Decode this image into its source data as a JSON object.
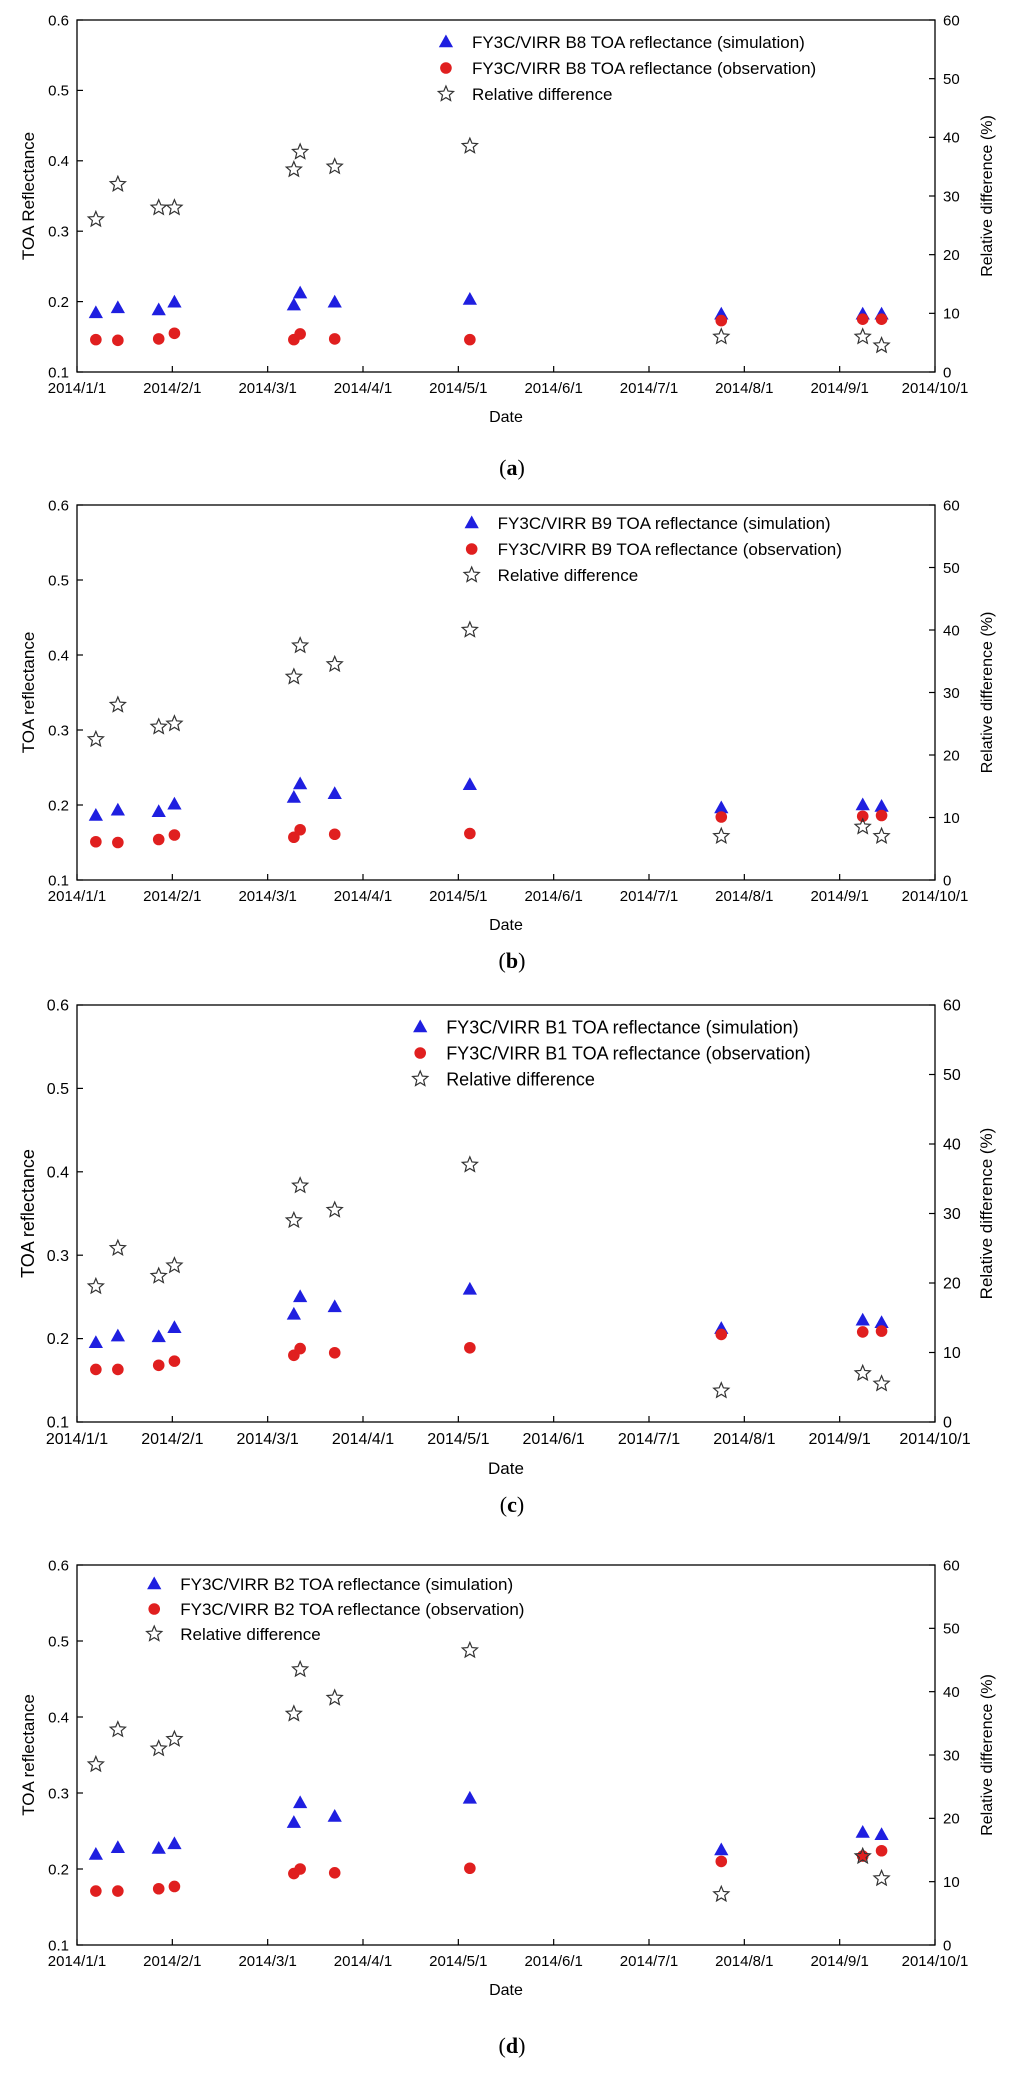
{
  "figure": {
    "panels": [
      "a",
      "b",
      "c",
      "d"
    ]
  },
  "chart_data": [
    {
      "type": "scatter",
      "panel_label": "a",
      "xlabel": "Date",
      "ylabel": "TOA Reflectance",
      "y2label": "Relative difference (%)",
      "ylim": [
        0.1,
        0.6
      ],
      "y2lim": [
        0,
        60
      ],
      "yticks": [
        "0.1",
        "0.2",
        "0.3",
        "0.4",
        "0.5",
        "0.6"
      ],
      "y2ticks": [
        "0",
        "10",
        "20",
        "30",
        "40",
        "50",
        "60"
      ],
      "xticks": [
        "2014/1/1",
        "2014/2/1",
        "2014/3/1",
        "2014/4/1",
        "2014/5/1",
        "2014/6/1",
        "2014/7/1",
        "2014/8/1",
        "2014/9/1",
        "2014/10/1"
      ],
      "xlim_days": [
        0,
        273
      ],
      "legend_position": "top-center",
      "series": [
        {
          "name": "FY3C/VIRR B8 TOA reflectance (simulation)",
          "marker": "triangle",
          "color": "#1f1fe0",
          "axis": "left",
          "x": [
            6,
            13,
            26,
            31,
            69,
            71,
            82,
            125,
            205,
            250,
            256
          ],
          "y": [
            0.184,
            0.191,
            0.188,
            0.199,
            0.195,
            0.212,
            0.199,
            0.203,
            0.182,
            0.182,
            0.182
          ]
        },
        {
          "name": "FY3C/VIRR B8 TOA reflectance (observation)",
          "marker": "circle",
          "color": "#e01f1f",
          "axis": "left",
          "x": [
            6,
            13,
            26,
            31,
            69,
            71,
            82,
            125,
            205,
            250,
            256
          ],
          "y": [
            0.146,
            0.145,
            0.147,
            0.155,
            0.146,
            0.154,
            0.147,
            0.146,
            0.173,
            0.175,
            0.175
          ]
        },
        {
          "name": "Relative difference",
          "marker": "star",
          "color": "#333333",
          "axis": "right",
          "x": [
            6,
            13,
            26,
            31,
            69,
            71,
            82,
            125,
            205,
            250,
            256
          ],
          "y": [
            26,
            32,
            28,
            28,
            34.5,
            37.5,
            35,
            38.5,
            6,
            6,
            4.5
          ]
        }
      ]
    },
    {
      "type": "scatter",
      "panel_label": "b",
      "xlabel": "Date",
      "ylabel": "TOA reflectance",
      "y2label": "Relative difference (%)",
      "ylim": [
        0.1,
        0.6
      ],
      "y2lim": [
        0,
        60
      ],
      "yticks": [
        "0.1",
        "0.2",
        "0.3",
        "0.4",
        "0.5",
        "0.6"
      ],
      "y2ticks": [
        "0",
        "10",
        "20",
        "30",
        "40",
        "50",
        "60"
      ],
      "xticks": [
        "2014/1/1",
        "2014/2/1",
        "2014/3/1",
        "2014/4/1",
        "2014/5/1",
        "2014/6/1",
        "2014/7/1",
        "2014/8/1",
        "2014/9/1",
        "2014/10/1"
      ],
      "xlim_days": [
        0,
        273
      ],
      "legend_position": "top-center",
      "series": [
        {
          "name": "FY3C/VIRR B9 TOA reflectance (simulation)",
          "marker": "triangle",
          "color": "#1f1fe0",
          "axis": "left",
          "x": [
            6,
            13,
            26,
            31,
            69,
            71,
            82,
            125,
            205,
            250,
            256
          ],
          "y": [
            0.186,
            0.193,
            0.191,
            0.201,
            0.21,
            0.228,
            0.215,
            0.227,
            0.196,
            0.2,
            0.198
          ]
        },
        {
          "name": "FY3C/VIRR B9 TOA reflectance (observation)",
          "marker": "circle",
          "color": "#e01f1f",
          "axis": "left",
          "x": [
            6,
            13,
            26,
            31,
            69,
            71,
            82,
            125,
            205,
            250,
            256
          ],
          "y": [
            0.151,
            0.15,
            0.154,
            0.16,
            0.157,
            0.167,
            0.161,
            0.162,
            0.184,
            0.185,
            0.186
          ]
        },
        {
          "name": "Relative difference",
          "marker": "star",
          "color": "#333333",
          "axis": "right",
          "x": [
            6,
            13,
            26,
            31,
            69,
            71,
            82,
            125,
            205,
            250,
            256
          ],
          "y": [
            22.5,
            28,
            24.5,
            25,
            32.5,
            37.5,
            34.5,
            40,
            7,
            8.5,
            7
          ]
        }
      ]
    },
    {
      "type": "scatter",
      "panel_label": "c",
      "xlabel": "Date",
      "ylabel": "TOA reflectance",
      "y2label": "Relative difference (%)",
      "ylim": [
        0.1,
        0.6
      ],
      "y2lim": [
        0,
        60
      ],
      "yticks": [
        "0.1",
        "0.2",
        "0.3",
        "0.4",
        "0.5",
        "0.6"
      ],
      "y2ticks": [
        "0",
        "10",
        "20",
        "30",
        "40",
        "50",
        "60"
      ],
      "xticks": [
        "2014/1/1",
        "2014/2/1",
        "2014/3/1",
        "2014/4/1",
        "2014/5/1",
        "2014/6/1",
        "2014/7/1",
        "2014/8/1",
        "2014/9/1",
        "2014/10/1"
      ],
      "xlim_days": [
        0,
        273
      ],
      "legend_position": "top-center",
      "series": [
        {
          "name": "FY3C/VIRR B1 TOA reflectance (simulation)",
          "marker": "triangle",
          "color": "#1f1fe0",
          "axis": "left",
          "x": [
            6,
            13,
            26,
            31,
            69,
            71,
            82,
            125,
            205,
            250,
            256
          ],
          "y": [
            0.195,
            0.203,
            0.202,
            0.213,
            0.229,
            0.25,
            0.238,
            0.259,
            0.212,
            0.222,
            0.219
          ]
        },
        {
          "name": "FY3C/VIRR B1 TOA reflectance (observation)",
          "marker": "circle",
          "color": "#e01f1f",
          "axis": "left",
          "x": [
            6,
            13,
            26,
            31,
            69,
            71,
            82,
            125,
            205,
            250,
            256
          ],
          "y": [
            0.163,
            0.163,
            0.168,
            0.173,
            0.18,
            0.188,
            0.183,
            0.189,
            0.205,
            0.208,
            0.209
          ]
        },
        {
          "name": "Relative difference",
          "marker": "star",
          "color": "#333333",
          "axis": "right",
          "x": [
            6,
            13,
            26,
            31,
            69,
            71,
            82,
            125,
            205,
            250,
            256
          ],
          "y": [
            19.5,
            25,
            21,
            22.5,
            29,
            34,
            30.5,
            37,
            4.5,
            7,
            5.5
          ]
        }
      ]
    },
    {
      "type": "scatter",
      "panel_label": "d",
      "xlabel": "Date",
      "ylabel": "TOA reflectance",
      "y2label": "Relative difference (%)",
      "ylim": [
        0.1,
        0.6
      ],
      "y2lim": [
        0,
        60
      ],
      "yticks": [
        "0.1",
        "0.2",
        "0.3",
        "0.4",
        "0.5",
        "0.6"
      ],
      "y2ticks": [
        "0",
        "10",
        "20",
        "30",
        "40",
        "50",
        "60"
      ],
      "xticks": [
        "2014/1/1",
        "2014/2/1",
        "2014/3/1",
        "2014/4/1",
        "2014/5/1",
        "2014/6/1",
        "2014/7/1",
        "2014/8/1",
        "2014/9/1",
        "2014/10/1"
      ],
      "xlim_days": [
        0,
        273
      ],
      "legend_position": "top-left",
      "series": [
        {
          "name": "FY3C/VIRR B2 TOA reflectance (simulation)",
          "marker": "triangle",
          "color": "#1f1fe0",
          "axis": "left",
          "x": [
            6,
            13,
            26,
            31,
            69,
            71,
            82,
            125,
            205,
            250,
            256
          ],
          "y": [
            0.219,
            0.228,
            0.227,
            0.233,
            0.261,
            0.287,
            0.269,
            0.293,
            0.225,
            0.248,
            0.245
          ]
        },
        {
          "name": "FY3C/VIRR B2 TOA reflectance (observation)",
          "marker": "circle",
          "color": "#e01f1f",
          "axis": "left",
          "x": [
            6,
            13,
            26,
            31,
            69,
            71,
            82,
            125,
            205,
            250,
            256
          ],
          "y": [
            0.171,
            0.171,
            0.174,
            0.177,
            0.194,
            0.2,
            0.195,
            0.201,
            0.21,
            0.217,
            0.224
          ]
        },
        {
          "name": "Relative difference",
          "marker": "star",
          "color": "#333333",
          "axis": "right",
          "x": [
            6,
            13,
            26,
            31,
            69,
            71,
            82,
            125,
            205,
            250,
            256
          ],
          "y": [
            28.5,
            34,
            31,
            32.5,
            36.5,
            43.5,
            39,
            46.5,
            8,
            14,
            10.5
          ]
        }
      ]
    }
  ]
}
